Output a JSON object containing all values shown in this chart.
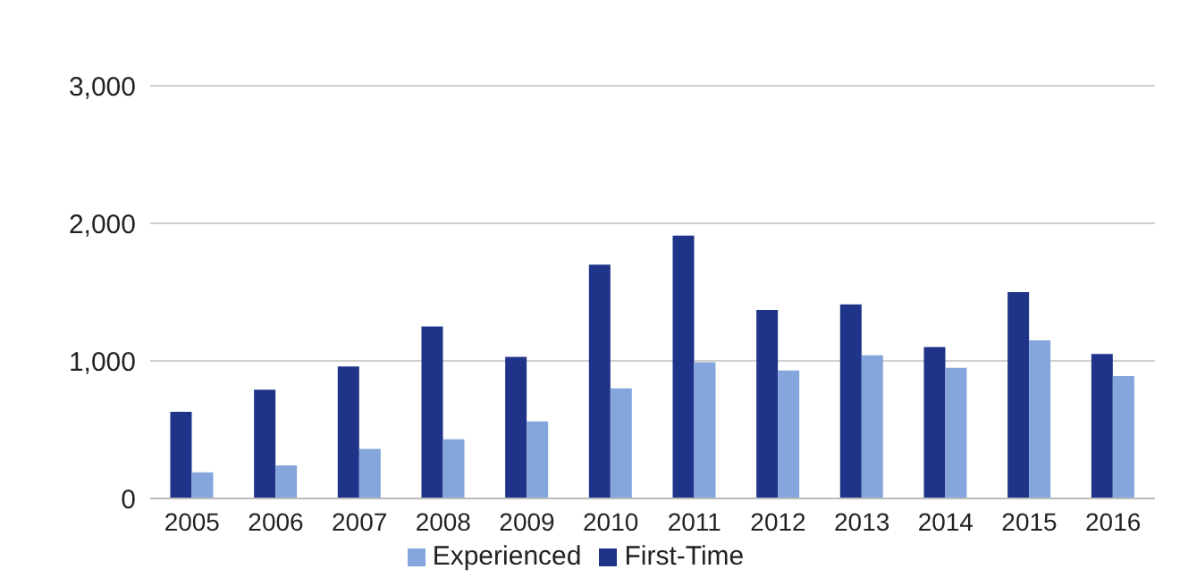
{
  "chart_data": {
    "type": "bar",
    "categories": [
      "2005",
      "2006",
      "2007",
      "2008",
      "2009",
      "2010",
      "2011",
      "2012",
      "2013",
      "2014",
      "2015",
      "2016"
    ],
    "series": [
      {
        "name": "First-Time",
        "color": "#1f3488",
        "values": [
          630,
          790,
          960,
          1250,
          1030,
          1700,
          1910,
          1370,
          1410,
          1100,
          1500,
          1050
        ]
      },
      {
        "name": "Experienced",
        "color": "#84a6dc",
        "values": [
          190,
          240,
          360,
          430,
          560,
          800,
          990,
          930,
          1040,
          950,
          1150,
          890
        ]
      }
    ],
    "ylim": [
      0,
      3000
    ],
    "yticks": [
      {
        "value": 0,
        "label": "0"
      },
      {
        "value": 1000,
        "label": "1,000"
      },
      {
        "value": 2000,
        "label": "2,000"
      },
      {
        "value": 3000,
        "label": "3,000"
      }
    ],
    "grid": "y",
    "legend": "bottom"
  }
}
